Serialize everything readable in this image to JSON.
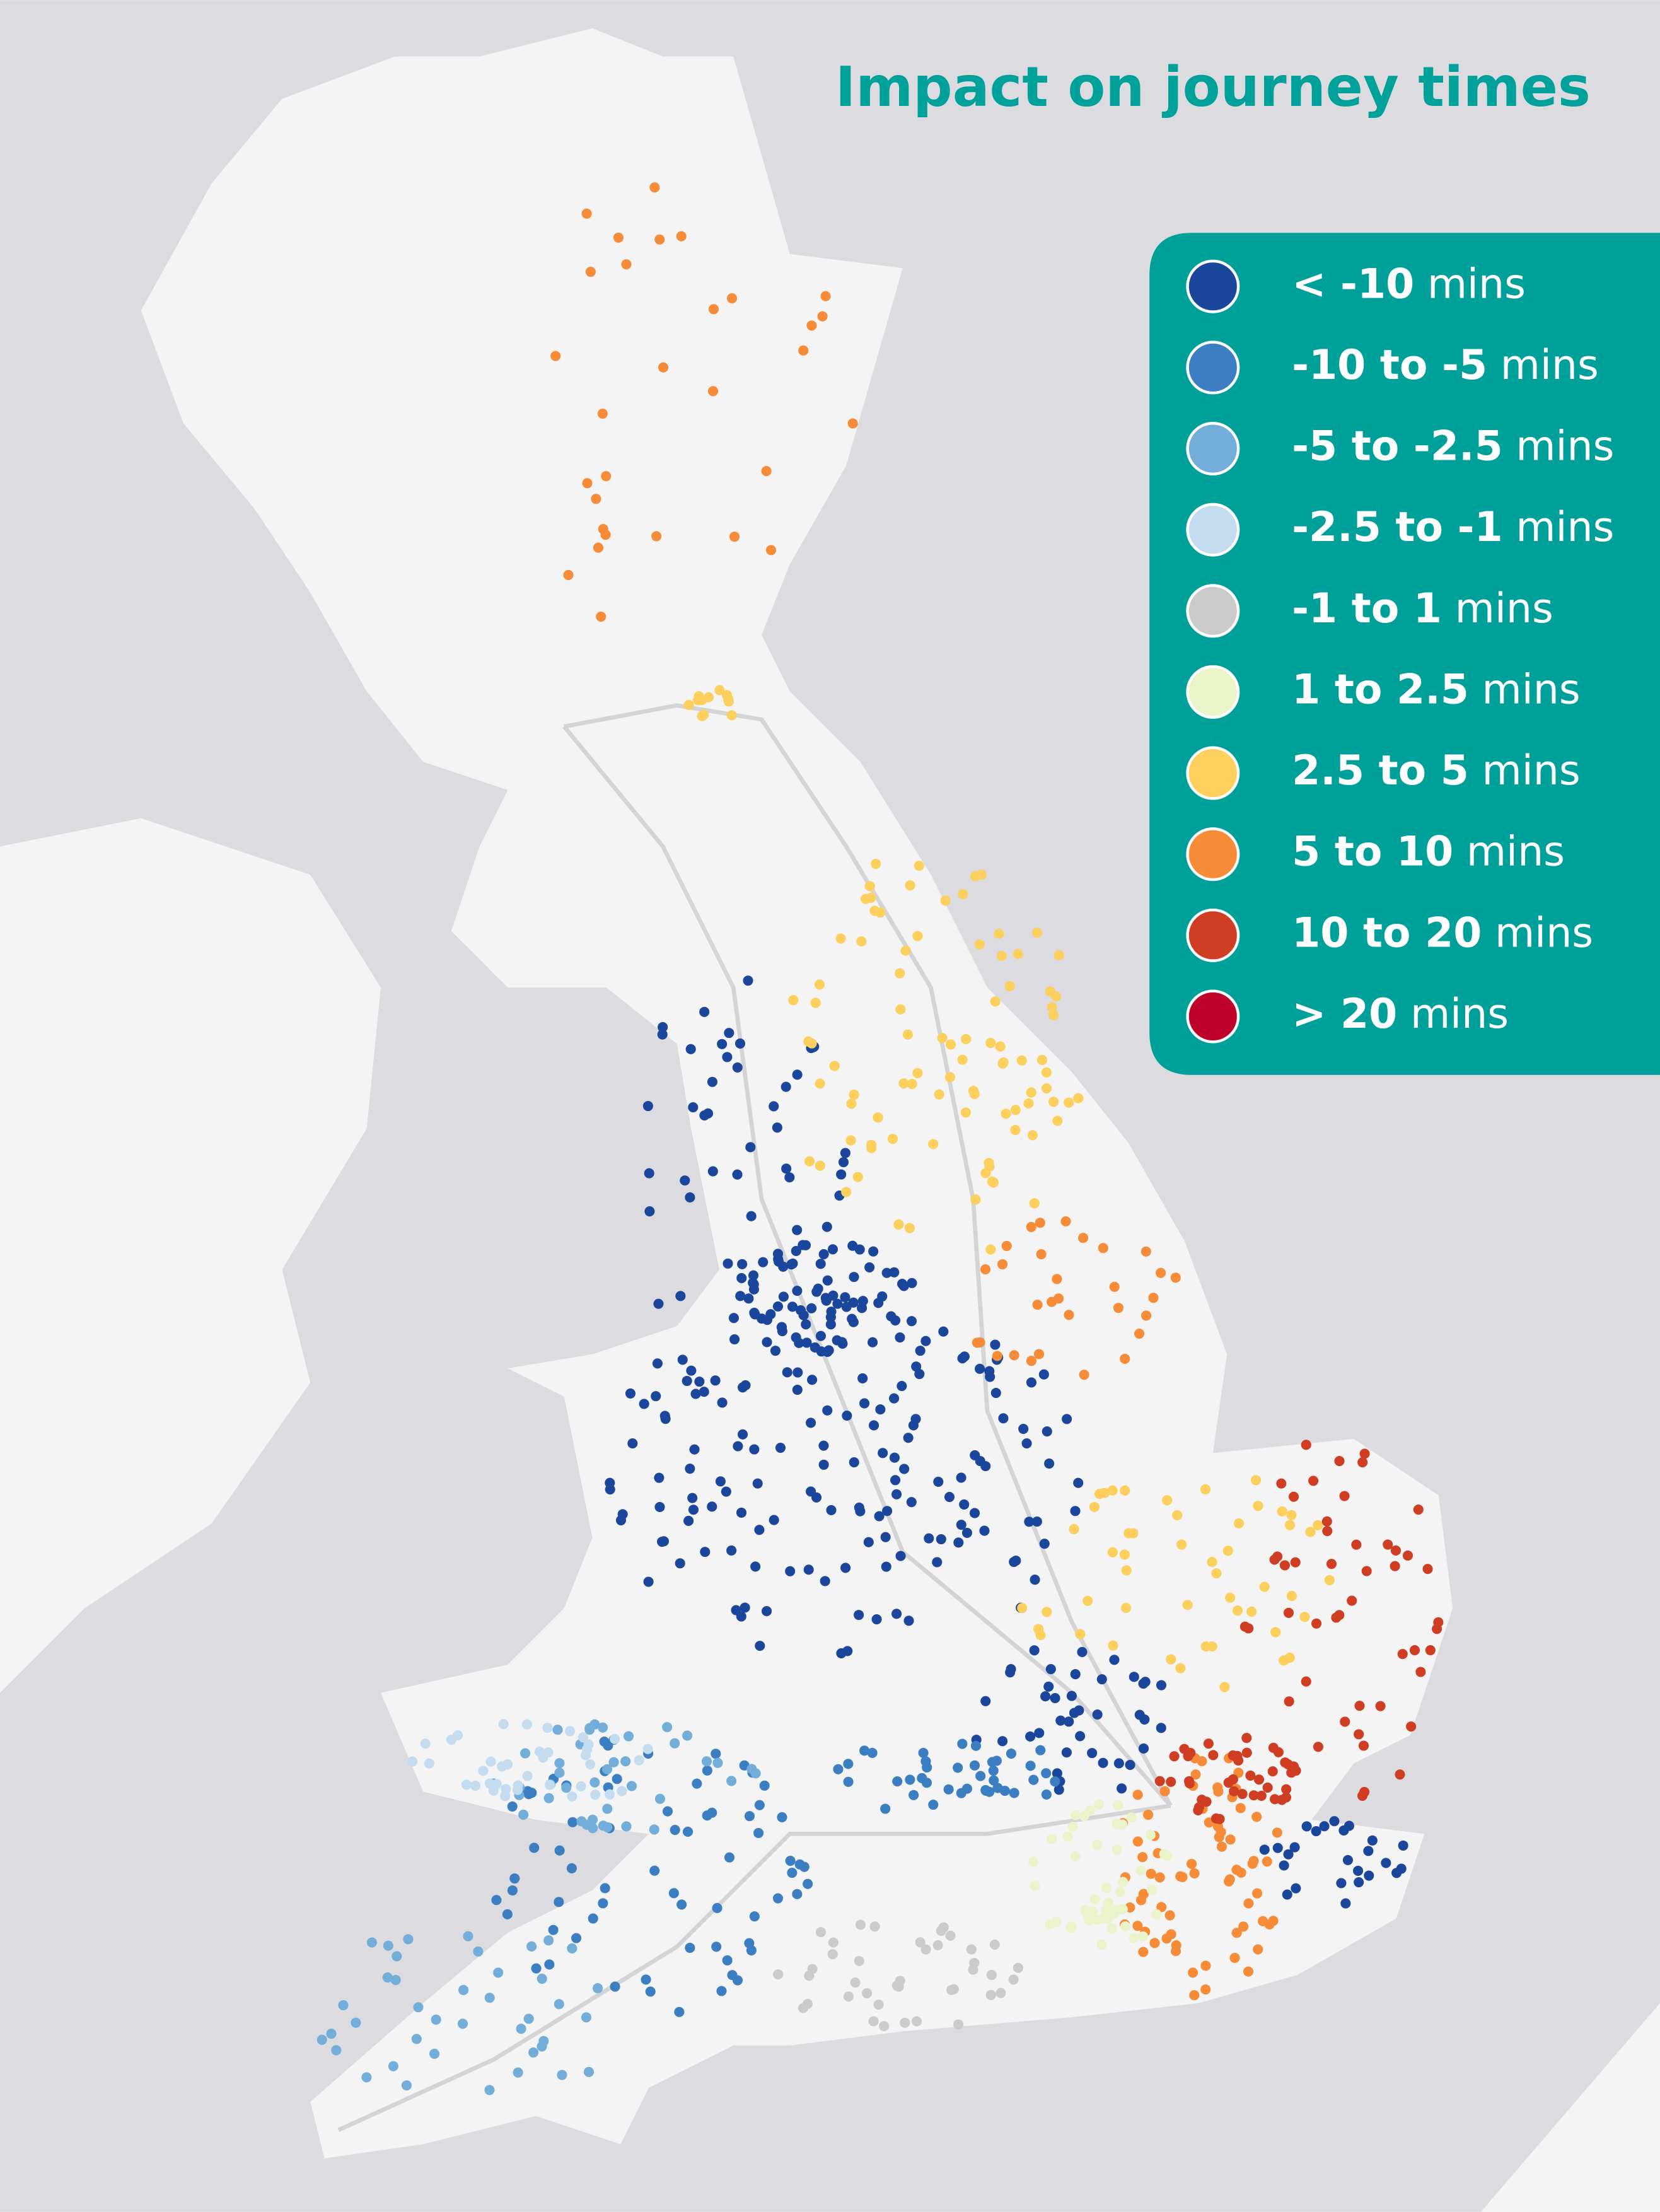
{
  "title": "Impact on journey times",
  "legend": [
    {
      "range": "< -10",
      "unit": "mins",
      "color": "#1a479c"
    },
    {
      "range": "-10 to -5",
      "unit": "mins",
      "color": "#3b7fc2"
    },
    {
      "range": "-5 to -2.5",
      "unit": "mins",
      "color": "#72aed9"
    },
    {
      "range": "-2.5 to -1",
      "unit": "mins",
      "color": "#c4dcef"
    },
    {
      "range": "-1 to 1",
      "unit": "mins",
      "color": "#cbcbcb"
    },
    {
      "range": "1 to 2.5",
      "unit": "mins",
      "color": "#eaf4c8"
    },
    {
      "range": "2.5 to 5",
      "unit": "mins",
      "color": "#fdcf5c"
    },
    {
      "range": "5 to 10",
      "unit": "mins",
      "color": "#f68b38"
    },
    {
      "range": "10 to 20",
      "unit": "mins",
      "color": "#cf3d22"
    },
    {
      "range": "> 20",
      "unit": "mins",
      "color": "#bf032b"
    }
  ]
}
